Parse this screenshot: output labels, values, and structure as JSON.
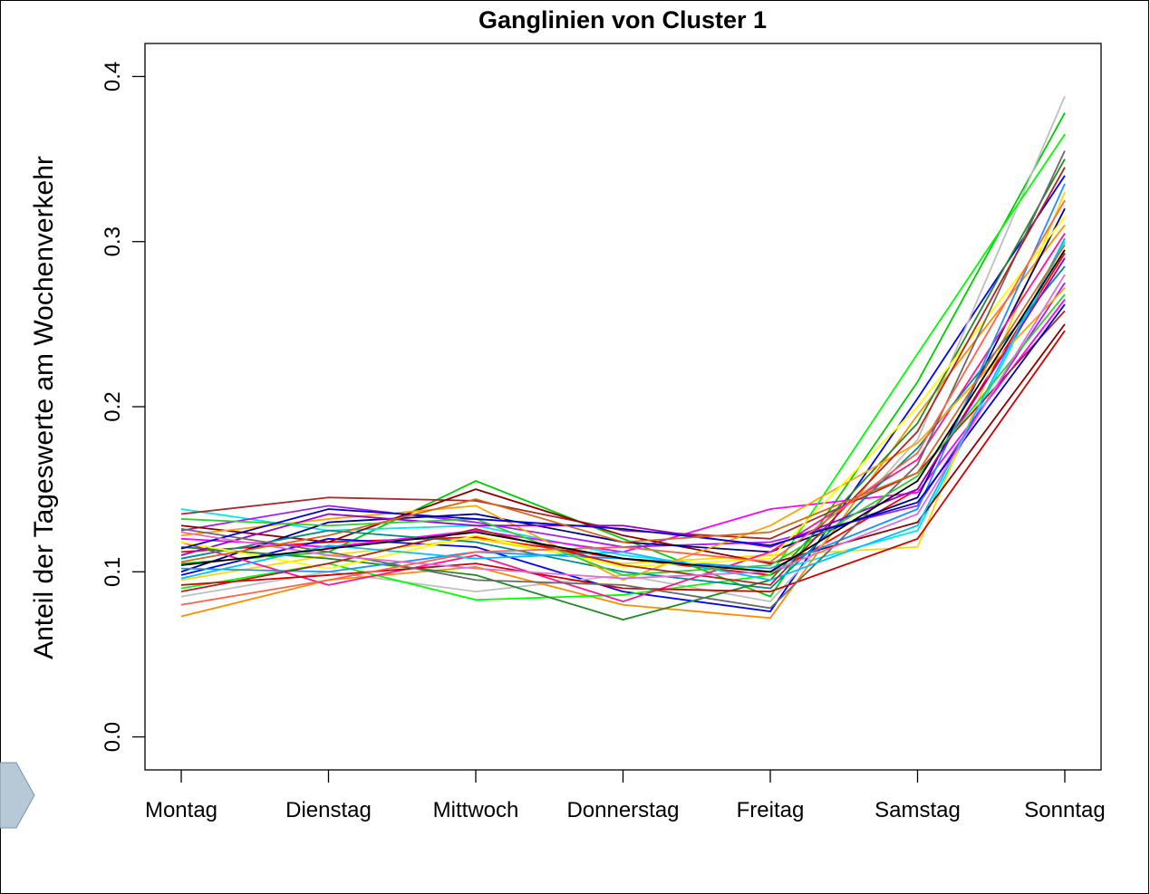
{
  "chart_data": {
    "type": "line",
    "title": "Ganglinien von Cluster 1",
    "y_label": "Anteil der Tageswerte am Wochenverkehr",
    "categories": [
      "Montag",
      "Dienstag",
      "Mittwoch",
      "Donnerstag",
      "Freitag",
      "Samstag",
      "Sonntag"
    ],
    "ylim": [
      -0.02,
      0.42
    ],
    "yticks": [
      {
        "value": 0,
        "label": "0.0"
      },
      0.1,
      0.2,
      0.3,
      0.4
    ],
    "series": [
      {
        "color": "#ff0000",
        "values": [
          0.112,
          0.118,
          0.121,
          0.108,
          0.098,
          0.15,
          0.293
        ]
      },
      {
        "color": "#00cc00",
        "values": [
          0.105,
          0.112,
          0.155,
          0.12,
          0.085,
          0.215,
          0.378
        ]
      },
      {
        "color": "#0000ff",
        "values": [
          0.098,
          0.12,
          0.115,
          0.088,
          0.076,
          0.205,
          0.34
        ]
      },
      {
        "color": "#00e5ee",
        "values": [
          0.138,
          0.125,
          0.128,
          0.11,
          0.1,
          0.125,
          0.3
        ]
      },
      {
        "color": "#ff00ff",
        "values": [
          0.12,
          0.115,
          0.125,
          0.112,
          0.138,
          0.148,
          0.265
        ]
      },
      {
        "color": "#ffd700",
        "values": [
          0.095,
          0.11,
          0.12,
          0.105,
          0.11,
          0.115,
          0.33
        ]
      },
      {
        "color": "#bebebe",
        "values": [
          0.085,
          0.1,
          0.088,
          0.098,
          0.082,
          0.18,
          0.388
        ]
      },
      {
        "color": "#ff8c00",
        "values": [
          0.073,
          0.095,
          0.103,
          0.08,
          0.072,
          0.195,
          0.31
        ]
      },
      {
        "color": "#a52a2a",
        "values": [
          0.135,
          0.145,
          0.143,
          0.125,
          0.12,
          0.16,
          0.258
        ]
      },
      {
        "color": "#a020f0",
        "values": [
          0.125,
          0.14,
          0.13,
          0.115,
          0.118,
          0.14,
          0.275
        ]
      },
      {
        "color": "#00ff00",
        "values": [
          0.09,
          0.105,
          0.083,
          0.086,
          0.098,
          0.232,
          0.365
        ]
      },
      {
        "color": "#8b0000",
        "values": [
          0.128,
          0.118,
          0.15,
          0.122,
          0.105,
          0.13,
          0.25
        ]
      },
      {
        "color": "#000080",
        "values": [
          0.1,
          0.13,
          0.135,
          0.118,
          0.112,
          0.145,
          0.32
        ]
      },
      {
        "color": "#ff1493",
        "values": [
          0.118,
          0.092,
          0.11,
          0.082,
          0.112,
          0.168,
          0.305
        ]
      },
      {
        "color": "#008b8b",
        "values": [
          0.108,
          0.125,
          0.118,
          0.1,
          0.09,
          0.175,
          0.285
        ]
      },
      {
        "color": "#228b22",
        "values": [
          0.115,
          0.108,
          0.098,
          0.071,
          0.095,
          0.19,
          0.35
        ]
      },
      {
        "color": "#ffa500",
        "values": [
          0.122,
          0.132,
          0.14,
          0.095,
          0.128,
          0.178,
          0.272
        ]
      },
      {
        "color": "#1e90ff",
        "values": [
          0.102,
          0.1,
          0.112,
          0.108,
          0.102,
          0.138,
          0.335
        ]
      },
      {
        "color": "#cd0000",
        "values": [
          0.092,
          0.098,
          0.105,
          0.09,
          0.088,
          0.12,
          0.246
        ]
      },
      {
        "color": "#9400d3",
        "values": [
          0.11,
          0.135,
          0.128,
          0.128,
          0.115,
          0.15,
          0.29
        ]
      },
      {
        "color": "#ffff00",
        "values": [
          0.118,
          0.102,
          0.122,
          0.103,
          0.108,
          0.2,
          0.315
        ]
      },
      {
        "color": "#696969",
        "values": [
          0.126,
          0.112,
          0.095,
          0.092,
          0.078,
          0.165,
          0.355
        ]
      },
      {
        "color": "#00bfff",
        "values": [
          0.096,
          0.116,
          0.108,
          0.112,
          0.095,
          0.128,
          0.302
        ]
      },
      {
        "color": "#32cd32",
        "values": [
          0.132,
          0.128,
          0.132,
          0.098,
          0.104,
          0.158,
          0.268
        ]
      },
      {
        "color": "#b22222",
        "values": [
          0.088,
          0.105,
          0.126,
          0.104,
          0.092,
          0.185,
          0.345
        ]
      },
      {
        "color": "#0000cd",
        "values": [
          0.114,
          0.138,
          0.132,
          0.126,
          0.116,
          0.142,
          0.262
        ]
      },
      {
        "color": "#ff6347",
        "values": [
          0.08,
          0.095,
          0.112,
          0.115,
          0.106,
          0.172,
          0.325
        ]
      },
      {
        "color": "#da70d6",
        "values": [
          0.124,
          0.11,
          0.102,
          0.096,
          0.1,
          0.135,
          0.28
        ]
      },
      {
        "color": "#d2691e",
        "values": [
          0.106,
          0.122,
          0.144,
          0.118,
          0.124,
          0.16,
          0.298
        ]
      },
      {
        "color": "#000000",
        "values": [
          0.104,
          0.114,
          0.124,
          0.108,
          0.1,
          0.155,
          0.295
        ]
      }
    ]
  }
}
